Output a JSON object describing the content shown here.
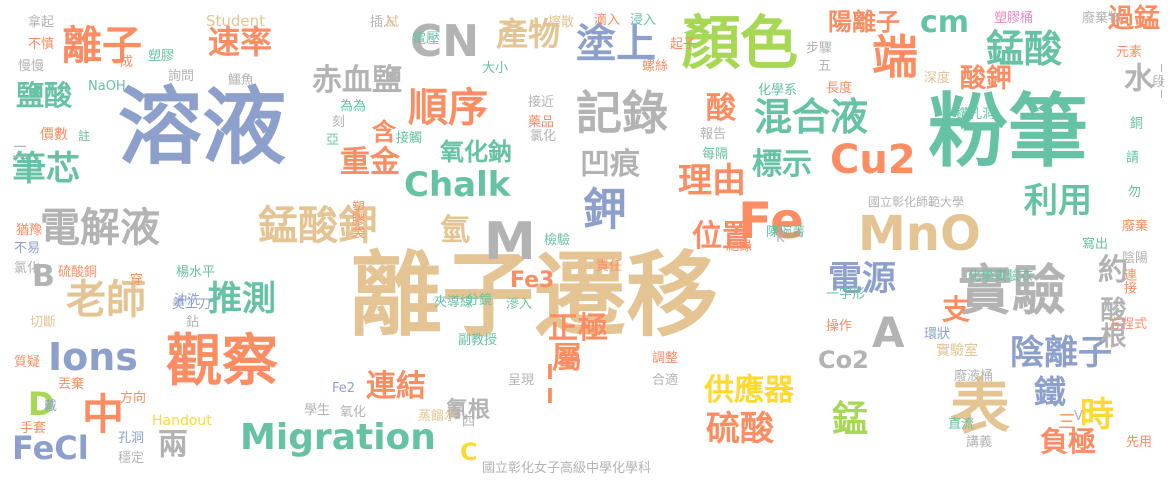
{
  "colors": {
    "blue": "#8da0cb",
    "teal": "#66c2a5",
    "orange": "#fc8d62",
    "green": "#a6d854",
    "tan": "#e5c494",
    "gray": "#b3b3b3",
    "pink": "#e78ac3",
    "yellow": "#ffd92f"
  },
  "words": [
    "溶液",
    "粉筆",
    "離子遷移",
    "顏色",
    "觀察",
    "實驗",
    "表",
    "電解液",
    "錳酸鉀",
    "記錄",
    "順序",
    "混合液",
    "鉀",
    "Fe",
    "MnO",
    "M",
    "CN",
    "Migration",
    "Ions",
    "老師",
    "推測",
    "速率",
    "離子",
    "塗上",
    "產物",
    "端",
    "錳酸",
    "Chalk",
    "Cu2",
    "理由",
    "利用",
    "位置",
    "陰離子",
    "電源",
    "中",
    "兩",
    "鐵",
    "錳",
    "時",
    "硫酸",
    "供應器",
    "連結",
    "筆芯",
    "赤血鹽",
    "凹痕",
    "標示",
    "重金",
    "氧化鈉",
    "酸鉀",
    "陽離子",
    "cm",
    "過錳",
    "正極",
    "屬",
    "負極",
    "約",
    "酸根",
    "水",
    "FeCl",
    "D",
    "B",
    "A",
    "Co2",
    "Fe3",
    "氰根",
    "氫",
    "支",
    "酸",
    "含",
    "鹽酸",
    "Student",
    "國立彰化師範大學",
    "國立彰化女子高級中學化學科",
    "Handout",
    "化學實驗衣",
    "實驗室",
    "電壓",
    "塑膠桶",
    "廢棄物",
    "元素",
    "拿起",
    "不慎",
    "慢慢",
    "NaOH",
    "價數",
    "猶豫",
    "不易",
    "氯化",
    "切斷",
    "質疑",
    "手套",
    "穩定",
    "丟棄",
    "戴",
    "方向",
    "孔洞",
    "美工刀",
    "鉆",
    "沖洗",
    "楊水平",
    "硫酸銅",
    "穿",
    "註",
    "詢問",
    "鱷魚",
    "塑膠",
    "成",
    "為為",
    "刻",
    "亞",
    "塑膠袋",
    "接觸",
    "插入",
    "試",
    "大小",
    "接近",
    "藥品",
    "擦散",
    "滴入",
    "浸入",
    "起子",
    "螺絲",
    "步驟",
    "五",
    "長度",
    "深度",
    "鑽孔洞",
    "化學系",
    "報告",
    "每隔",
    "氯化",
    "檢驗",
    "分鏡",
    "夾導線",
    "滲入",
    "副教授",
    "呈現",
    "合適",
    "調整",
    "責任",
    "紀錄",
    "陳琬菁",
    "K",
    "一字形",
    "操作",
    "環狀",
    "廢液桶",
    "直流",
    "講義",
    "先用",
    "方程式",
    "寫出",
    "廢棄",
    "陰陽",
    "連接",
    "勿",
    "請",
    "銅",
    "段",
    "Fe2",
    "氧化",
    "學生",
    "蒸餾水",
    "四",
    "C",
    "V",
    "III",
    "II",
    "三",
    "二"
  ]
}
